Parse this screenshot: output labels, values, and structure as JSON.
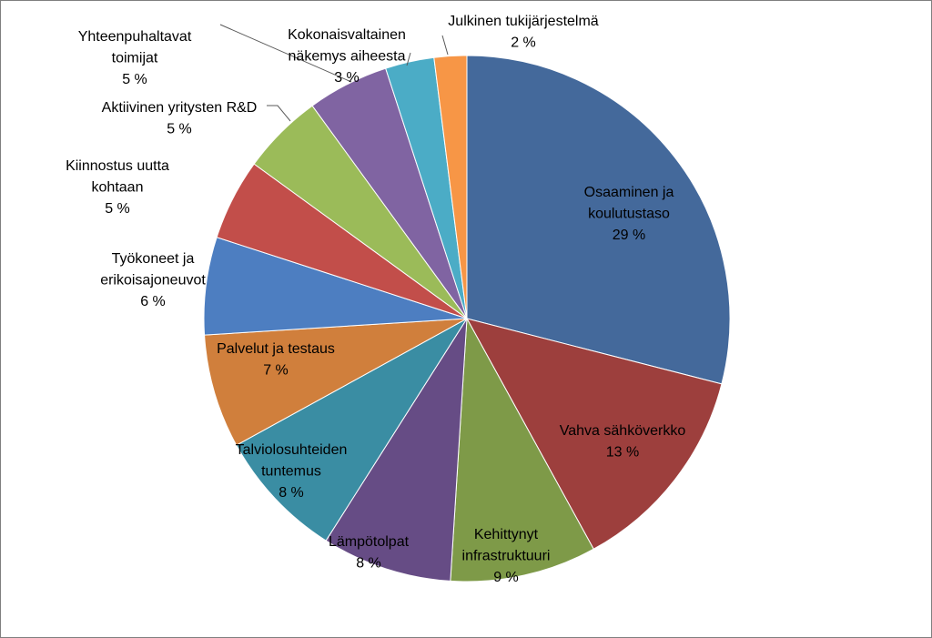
{
  "chart_data": {
    "type": "pie",
    "title": "",
    "start_angle_deg": 0,
    "direction": "clockwise",
    "slices": [
      {
        "name_lines": [
          "Osaaminen ja",
          "koulutustaso"
        ],
        "value": 29,
        "value_label": "29 %",
        "color": "#44699B",
        "label_inside": true
      },
      {
        "name_lines": [
          "Vahva sähköverkko"
        ],
        "value": 13,
        "value_label": "13 %",
        "color": "#9D3F3D",
        "label_inside": true
      },
      {
        "name_lines": [
          "Kehittynyt",
          "infrastruktuuri"
        ],
        "value": 9,
        "value_label": "9 %",
        "color": "#7E9A48",
        "label_inside": true
      },
      {
        "name_lines": [
          "Lämpötolpat"
        ],
        "value": 8,
        "value_label": "8 %",
        "color": "#664C85",
        "label_inside": true
      },
      {
        "name_lines": [
          "Talviolosuhteiden",
          "tuntemus"
        ],
        "value": 8,
        "value_label": "8 %",
        "color": "#3A8DA3",
        "label_inside": true
      },
      {
        "name_lines": [
          "Palvelut ja testaus"
        ],
        "value": 7,
        "value_label": "7 %",
        "color": "#D07F3C",
        "label_inside": true
      },
      {
        "name_lines": [
          "Työkoneet ja",
          "erikoisajoneuvot"
        ],
        "value": 6,
        "value_label": "6 %",
        "color": "#4D7EC1",
        "label_inside": false
      },
      {
        "name_lines": [
          "Kiinnostus uutta",
          "kohtaan"
        ],
        "value": 5,
        "value_label": "5 %",
        "color": "#C24E4A",
        "label_inside": false
      },
      {
        "name_lines": [
          "Aktiivinen yritysten R&D"
        ],
        "value": 5,
        "value_label": "5 %",
        "color": "#9BBB59",
        "label_inside": false
      },
      {
        "name_lines": [
          "Yhteenpuhaltavat",
          "toimijat"
        ],
        "value": 5,
        "value_label": "5 %",
        "color": "#8064A2",
        "label_inside": false
      },
      {
        "name_lines": [
          "Kokonaisvaltainen",
          "näkemys aiheesta"
        ],
        "value": 3,
        "value_label": "3 %",
        "color": "#4BACC6",
        "label_inside": false
      },
      {
        "name_lines": [
          "Julkinen tukijärjestelmä"
        ],
        "value": 2,
        "value_label": "2 %",
        "color": "#F79646",
        "label_inside": false
      }
    ]
  }
}
